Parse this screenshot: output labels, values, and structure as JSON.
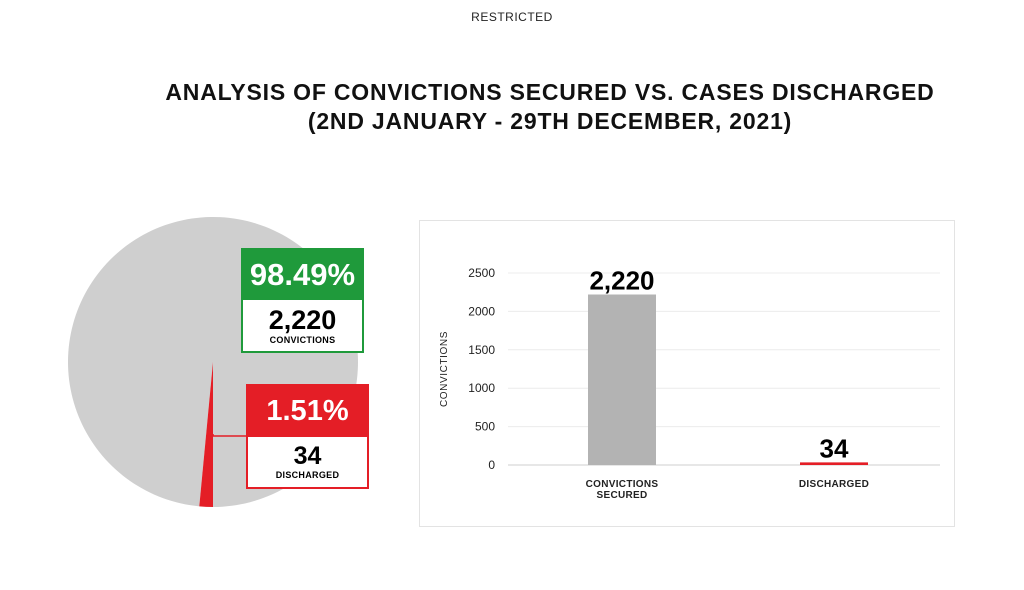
{
  "header": {
    "classification": "RESTRICTED",
    "title_line1": "ANALYSIS OF CONVICTIONS SECURED VS. CASES DISCHARGED",
    "title_line2": "(2ND JANUARY - 29TH DECEMBER, 2021)"
  },
  "colors": {
    "convictions_green": "#1f9a3b",
    "discharged_red": "#e41e26",
    "pie_grey": "#cfcfcf",
    "bar_grey": "#b3b3b3"
  },
  "chart_data": [
    {
      "type": "pie",
      "slices": [
        {
          "label": "CONVICTIONS",
          "value": 2220,
          "percent_label": "98.49%",
          "value_label": "2,220"
        },
        {
          "label": "DISCHARGED",
          "value": 34,
          "percent_label": "1.51%",
          "value_label": "34"
        }
      ]
    },
    {
      "type": "bar",
      "categories": [
        "CONVICTIONS SECURED",
        "DISCHARGED"
      ],
      "category_lines": [
        [
          "CONVICTIONS",
          "SECURED"
        ],
        [
          "DISCHARGED"
        ]
      ],
      "values": [
        2220,
        34
      ],
      "data_labels": [
        "2,220",
        "34"
      ],
      "ylabel": "CONVICTIONS",
      "ylim": [
        0,
        2500
      ],
      "yticks": [
        0,
        500,
        1000,
        1500,
        2000,
        2500
      ],
      "grid": true
    }
  ]
}
